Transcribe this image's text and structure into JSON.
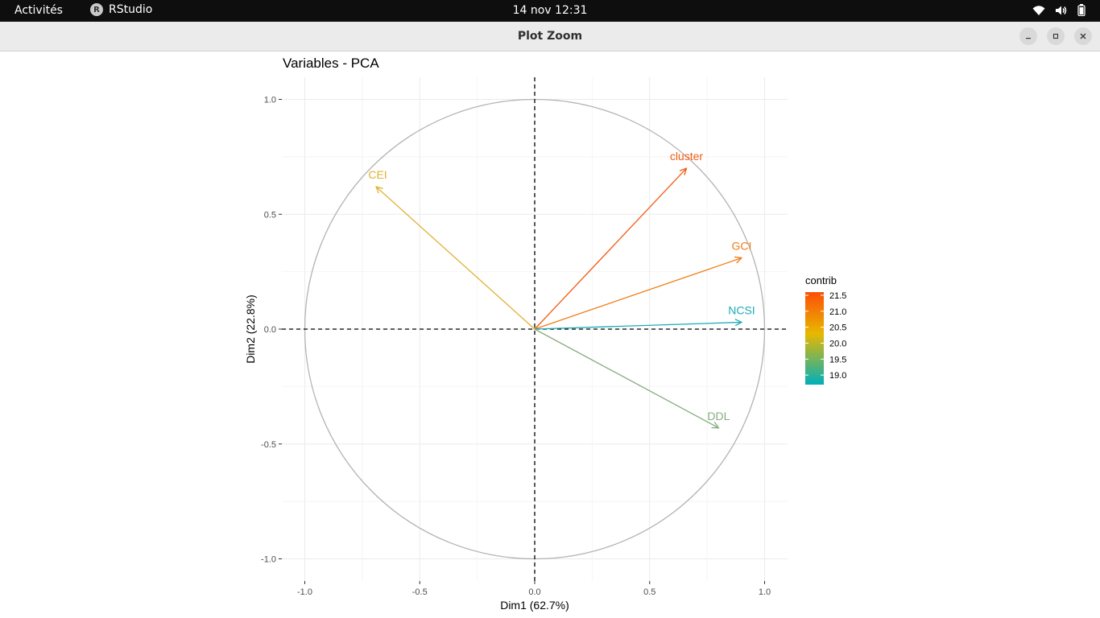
{
  "topbar": {
    "activities": "Activités",
    "app_name": "RStudio",
    "app_icon": "r-logo-icon",
    "clock": "14 nov  12:31",
    "tray_icons": [
      "wifi-icon",
      "volume-icon",
      "battery-icon"
    ]
  },
  "window": {
    "title": "Plot Zoom",
    "buttons": [
      "minimize-icon",
      "maximize-icon",
      "close-icon"
    ]
  },
  "chart_data": {
    "type": "pca-variables",
    "title": "Variables - PCA",
    "xlabel": "Dim1 (62.7%)",
    "ylabel": "Dim2 (22.8%)",
    "xlim": [
      -1.1,
      1.1
    ],
    "ylim": [
      -1.1,
      1.1
    ],
    "xticks": [
      -1.0,
      -0.5,
      0.0,
      0.5,
      1.0
    ],
    "yticks": [
      -1.0,
      -0.5,
      0.0,
      0.5,
      1.0
    ],
    "xtick_labels": [
      "-1.0",
      "-0.5",
      "0.0",
      "0.5",
      "1.0"
    ],
    "ytick_labels": [
      "-1.0",
      "-0.5",
      "0.0",
      "0.5",
      "1.0"
    ],
    "grid": true,
    "correlation_circle": true,
    "variables": [
      {
        "name": "CEI",
        "x": -0.69,
        "y": 0.62,
        "contrib": 20.0,
        "color": "#E0B232"
      },
      {
        "name": "cluster",
        "x": 0.66,
        "y": 0.7,
        "contrib": 21.5,
        "color": "#F25A10"
      },
      {
        "name": "GCI",
        "x": 0.9,
        "y": 0.31,
        "contrib": 21.1,
        "color": "#F07D17"
      },
      {
        "name": "NCSI",
        "x": 0.9,
        "y": 0.03,
        "contrib": 18.8,
        "color": "#1AACB8"
      },
      {
        "name": "DDL",
        "x": 0.8,
        "y": -0.43,
        "contrib": 19.3,
        "color": "#87AC80"
      }
    ],
    "legend": {
      "title": "contrib",
      "position": "right",
      "range": [
        18.7,
        21.6
      ],
      "ticks": [
        21.5,
        21.0,
        20.5,
        20.0,
        19.5,
        19.0
      ],
      "tick_labels": [
        "21.5",
        "21.0",
        "20.5",
        "20.0",
        "19.5",
        "19.0"
      ],
      "gradient": [
        "#FC4E07",
        "#E7B800",
        "#00AFBB"
      ]
    }
  }
}
